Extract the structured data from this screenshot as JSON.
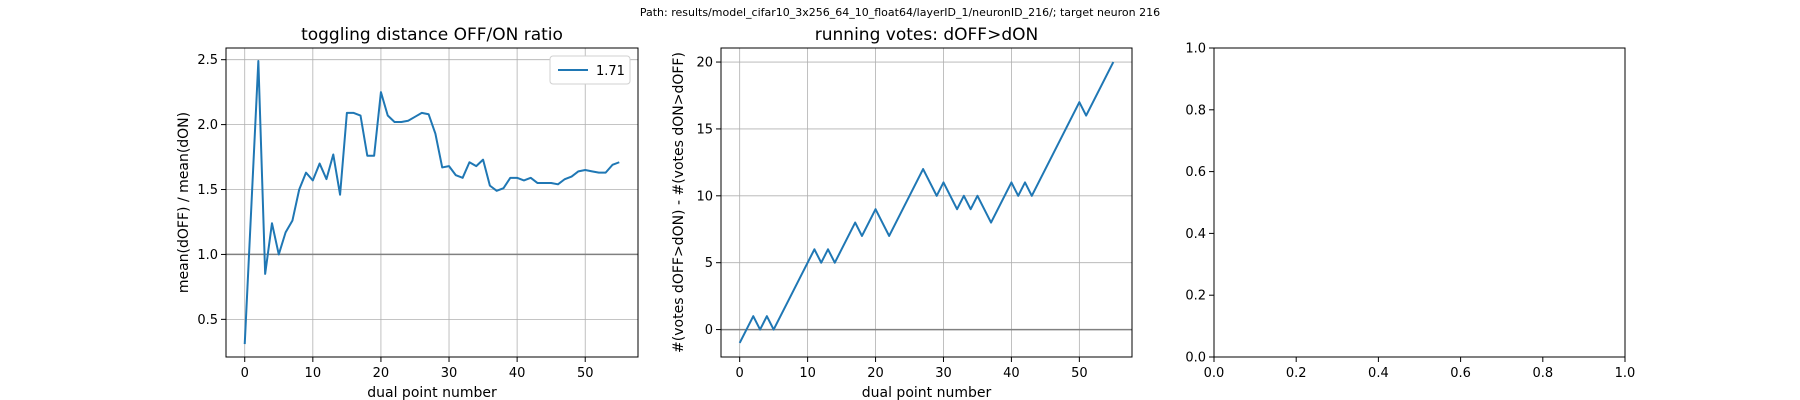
{
  "figure": {
    "suptitle": "Path: results/model_cifar10_3x256_64_10_float64/layerID_1/neuronID_216/; target neuron 216"
  },
  "chart_data": [
    {
      "type": "line",
      "title": "toggling distance OFF/ON ratio",
      "xlabel": "dual point number",
      "ylabel": "mean(dOFF) / mean(dON)",
      "xlim": [
        -2.75,
        57.75
      ],
      "ylim": [
        0.21,
        2.59
      ],
      "xticks": [
        0,
        10,
        20,
        30,
        40,
        50
      ],
      "yticks": [
        0.5,
        1.0,
        1.5,
        2.0,
        2.5
      ],
      "xtick_labels": [
        "0",
        "10",
        "20",
        "30",
        "40",
        "50"
      ],
      "ytick_labels": [
        "0.5",
        "1.0",
        "1.5",
        "2.0",
        "2.5"
      ],
      "grid": true,
      "legend": "top-right",
      "hline": 1.0,
      "series": [
        {
          "name": "1.71",
          "color": "#1f77b4",
          "x": [
            0,
            1,
            2,
            3,
            4,
            5,
            6,
            7,
            8,
            9,
            10,
            11,
            12,
            13,
            14,
            15,
            16,
            17,
            18,
            19,
            20,
            21,
            22,
            23,
            24,
            25,
            26,
            27,
            28,
            29,
            30,
            31,
            32,
            33,
            34,
            35,
            36,
            37,
            38,
            39,
            40,
            41,
            42,
            43,
            44,
            45,
            46,
            47,
            48,
            49,
            50,
            51,
            52,
            53,
            54,
            55
          ],
          "y": [
            0.31,
            1.4,
            2.49,
            0.85,
            1.24,
            1.0,
            1.17,
            1.26,
            1.5,
            1.63,
            1.57,
            1.7,
            1.58,
            1.77,
            1.46,
            2.09,
            2.09,
            2.07,
            1.76,
            1.76,
            2.25,
            2.07,
            2.02,
            2.02,
            2.03,
            2.06,
            2.09,
            2.08,
            1.93,
            1.67,
            1.68,
            1.61,
            1.59,
            1.71,
            1.68,
            1.73,
            1.53,
            1.49,
            1.51,
            1.59,
            1.59,
            1.57,
            1.59,
            1.55,
            1.55,
            1.55,
            1.54,
            1.58,
            1.6,
            1.64,
            1.65,
            1.64,
            1.63,
            1.63,
            1.69,
            1.71
          ]
        }
      ]
    },
    {
      "type": "line",
      "title": "running votes: dOFF>dON",
      "xlabel": "dual point number",
      "ylabel": "#(votes dOFF>dON) - #(votes dON>dOFF)",
      "xlim": [
        -2.75,
        57.75
      ],
      "ylim": [
        -2.05,
        21.05
      ],
      "xticks": [
        0,
        10,
        20,
        30,
        40,
        50
      ],
      "yticks": [
        0,
        5,
        10,
        15,
        20
      ],
      "xtick_labels": [
        "0",
        "10",
        "20",
        "30",
        "40",
        "50"
      ],
      "ytick_labels": [
        "0",
        "5",
        "10",
        "15",
        "20"
      ],
      "grid": true,
      "hline": 0,
      "series": [
        {
          "color": "#1f77b4",
          "x": [
            0,
            1,
            2,
            3,
            4,
            5,
            6,
            7,
            8,
            9,
            10,
            11,
            12,
            13,
            14,
            15,
            16,
            17,
            18,
            19,
            20,
            21,
            22,
            23,
            24,
            25,
            26,
            27,
            28,
            29,
            30,
            31,
            32,
            33,
            34,
            35,
            36,
            37,
            38,
            39,
            40,
            41,
            42,
            43,
            44,
            45,
            46,
            47,
            48,
            49,
            50,
            51,
            52,
            53,
            54,
            55
          ],
          "y": [
            -1,
            0,
            1,
            0,
            1,
            0,
            1,
            2,
            3,
            4,
            5,
            6,
            5,
            6,
            5,
            6,
            7,
            8,
            7,
            8,
            9,
            8,
            7,
            8,
            9,
            10,
            11,
            12,
            11,
            10,
            11,
            10,
            9,
            10,
            9,
            10,
            9,
            8,
            9,
            10,
            11,
            10,
            11,
            10,
            11,
            12,
            13,
            14,
            15,
            16,
            17,
            16,
            17,
            18,
            19,
            20
          ]
        }
      ]
    },
    {
      "type": "line",
      "title": "",
      "xlim": [
        0,
        1
      ],
      "ylim": [
        0,
        1
      ],
      "xticks": [
        0,
        0.2,
        0.4,
        0.6,
        0.8,
        1.0
      ],
      "yticks": [
        0,
        0.2,
        0.4,
        0.6,
        0.8,
        1.0
      ],
      "xtick_labels": [
        "0.0",
        "0.2",
        "0.4",
        "0.6",
        "0.8",
        "1.0"
      ],
      "ytick_labels": [
        "0.0",
        "0.2",
        "0.4",
        "0.6",
        "0.8",
        "1.0"
      ],
      "grid": false,
      "series": []
    }
  ]
}
